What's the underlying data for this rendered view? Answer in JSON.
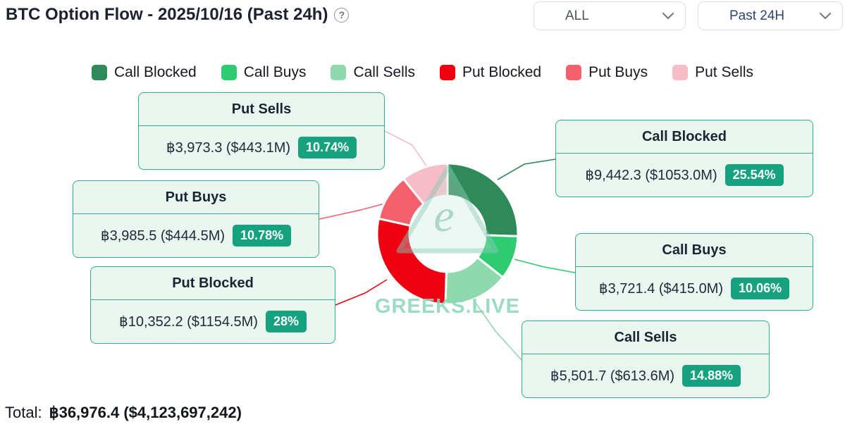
{
  "header": {
    "title": "BTC Option Flow - 2025/10/16 (Past 24h)",
    "help_icon": "?",
    "filters": [
      {
        "value": "ALL"
      },
      {
        "value": "Past 24H"
      }
    ]
  },
  "theme": {
    "box_bg": "#e9f6f0",
    "box_border": "#36a98c",
    "badge_bg": "#16a27e",
    "blue_text": "#2f4470"
  },
  "legend": {
    "items": [
      {
        "label": "Call Blocked",
        "color": "#2e8b57"
      },
      {
        "label": "Call Buys",
        "color": "#2ecc71"
      },
      {
        "label": "Call Sells",
        "color": "#8fd9ac"
      },
      {
        "label": "Put Blocked",
        "color": "#ee0011"
      },
      {
        "label": "Put Buys",
        "color": "#f4606c"
      },
      {
        "label": "Put Sells",
        "color": "#f6bdc9"
      }
    ]
  },
  "callouts": [
    {
      "title": "Put Sells",
      "value": "฿3,973.3 ($443.1M)",
      "percent": "10.74%",
      "line_color": "#f6bdc9"
    },
    {
      "title": "Put Buys",
      "value": "฿3,985.5 ($444.5M)",
      "percent": "10.78%",
      "line_color": "#f4606c"
    },
    {
      "title": "Put Blocked",
      "value": "฿10,352.2 ($1154.5M)",
      "percent": "28%",
      "line_color": "#ee0011"
    },
    {
      "title": "Call Blocked",
      "value": "฿9,442.3 ($1053.0M)",
      "percent": "25.54%",
      "line_color": "#2e8b57"
    },
    {
      "title": "Call Buys",
      "value": "฿3,721.4 ($415.0M)",
      "percent": "10.06%",
      "line_color": "#2ecc71"
    },
    {
      "title": "Call Sells",
      "value": "฿5,501.7 ($613.6M)",
      "percent": "14.88%",
      "line_color": "#8fd9ac"
    }
  ],
  "chart_data": {
    "type": "pie",
    "donut": true,
    "title": "BTC Option Flow - 2025/10/16 (Past 24h)",
    "categories": [
      "Call Blocked",
      "Call Buys",
      "Call Sells",
      "Put Blocked",
      "Put Buys",
      "Put Sells"
    ],
    "values": [
      25.54,
      10.06,
      14.88,
      28,
      10.78,
      10.74
    ],
    "value_labels": [
      "฿9,442.3 ($1053.0M)",
      "฿3,721.4 ($415.0M)",
      "฿5,501.7 ($613.6M)",
      "฿10,352.2 ($1154.5M)",
      "฿3,985.5 ($444.5M)",
      "฿3,973.3 ($443.1M)"
    ],
    "colors": [
      "#2e8b57",
      "#2ecc71",
      "#8fd9ac",
      "#ee0011",
      "#f4606c",
      "#f6bdc9"
    ],
    "start_angle_deg": 0,
    "clockwise": true,
    "legend_position": "top",
    "watermark": "GREEKS.LIVE"
  },
  "total": {
    "label": "Total:",
    "value": "฿36,976.4 ($4,123,697,242)"
  }
}
